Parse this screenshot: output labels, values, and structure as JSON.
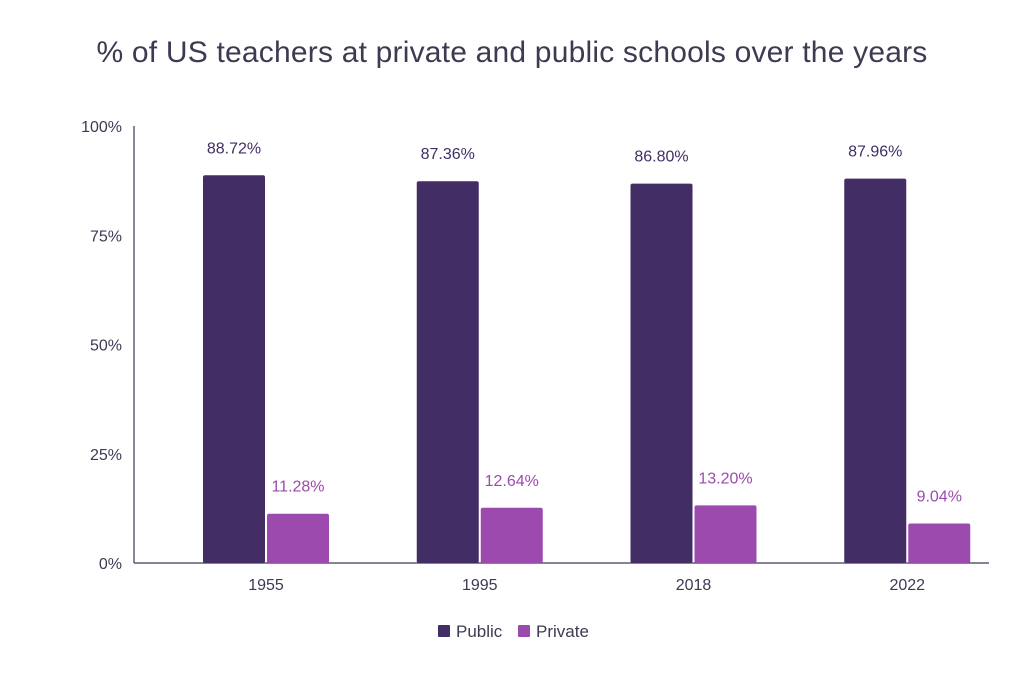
{
  "chart_data": {
    "type": "bar",
    "title": "% of US teachers at private and public schools over the years",
    "xlabel": "",
    "ylabel": "",
    "categories": [
      "1955",
      "1995",
      "2018",
      "2022"
    ],
    "series": [
      {
        "name": "Public",
        "color": "#432d65",
        "label_color": "#432d65",
        "values": [
          88.72,
          87.36,
          86.8,
          87.96
        ],
        "labels": [
          "88.72%",
          "87.36%",
          "86.80%",
          "87.96%"
        ]
      },
      {
        "name": "Private",
        "color": "#9c4aad",
        "label_color": "#9c4aad",
        "values": [
          11.28,
          12.64,
          13.2,
          9.04
        ],
        "labels": [
          "11.28%",
          "12.64%",
          "13.20%",
          "9.04%"
        ]
      }
    ],
    "ylim": [
      0,
      100
    ],
    "yticks": [
      0,
      25,
      50,
      75,
      100
    ],
    "ytick_labels": [
      "0%",
      "25%",
      "50%",
      "75%",
      "100%"
    ],
    "grid": false,
    "legend_position": "bottom-center"
  }
}
